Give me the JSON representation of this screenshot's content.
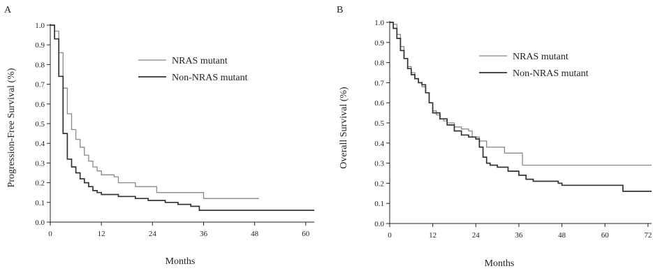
{
  "chart_data": [
    {
      "type": "line",
      "panel_label": "A",
      "xlabel": "Months",
      "ylabel": "Progression-Free Survival (%)",
      "xticks": [
        "0",
        "12",
        "24",
        "36",
        "48",
        "60"
      ],
      "yticks": [
        "0.0",
        "0.1",
        "0.2",
        "0.3",
        "0.4",
        "0.5",
        "0.6",
        "0.7",
        "0.8",
        "0.9",
        "1.0"
      ],
      "xlim": [
        0,
        62
      ],
      "ylim": [
        0,
        1
      ],
      "legend_position": "top-right",
      "series": [
        {
          "name": "NRAS mutant",
          "color": "#888888",
          "points": [
            [
              0,
              1.0
            ],
            [
              1,
              0.97
            ],
            [
              2,
              0.86
            ],
            [
              3,
              0.68
            ],
            [
              4,
              0.55
            ],
            [
              5,
              0.47
            ],
            [
              6,
              0.42
            ],
            [
              7,
              0.38
            ],
            [
              8,
              0.34
            ],
            [
              9,
              0.31
            ],
            [
              10,
              0.28
            ],
            [
              11,
              0.26
            ],
            [
              12,
              0.24
            ],
            [
              15,
              0.23
            ],
            [
              16,
              0.2
            ],
            [
              20,
              0.18
            ],
            [
              25,
              0.15
            ],
            [
              30,
              0.15
            ],
            [
              34,
              0.15
            ],
            [
              36,
              0.12
            ],
            [
              49,
              0.12
            ]
          ]
        },
        {
          "name": "Non-NRAS mutant",
          "color": "#333333",
          "points": [
            [
              0,
              1.0
            ],
            [
              1,
              0.93
            ],
            [
              2,
              0.74
            ],
            [
              3,
              0.45
            ],
            [
              4,
              0.32
            ],
            [
              5,
              0.28
            ],
            [
              6,
              0.25
            ],
            [
              7,
              0.22
            ],
            [
              8,
              0.2
            ],
            [
              9,
              0.18
            ],
            [
              10,
              0.16
            ],
            [
              11,
              0.15
            ],
            [
              12,
              0.14
            ],
            [
              15,
              0.14
            ],
            [
              16,
              0.13
            ],
            [
              20,
              0.12
            ],
            [
              23,
              0.11
            ],
            [
              27,
              0.1
            ],
            [
              30,
              0.09
            ],
            [
              33,
              0.08
            ],
            [
              35,
              0.06
            ],
            [
              62,
              0.06
            ]
          ]
        }
      ]
    },
    {
      "type": "line",
      "panel_label": "B",
      "xlabel": "Months",
      "ylabel": "Overall Survival (%)",
      "xticks": [
        "0",
        "12",
        "24",
        "36",
        "48",
        "60",
        "72"
      ],
      "yticks": [
        "0.0",
        "0.1",
        "0.2",
        "0.3",
        "0.4",
        "0.5",
        "0.6",
        "0.7",
        "0.8",
        "0.9",
        "1.0"
      ],
      "xlim": [
        0,
        73
      ],
      "ylim": [
        0,
        1
      ],
      "legend_position": "top-right",
      "series": [
        {
          "name": "NRAS mutant",
          "color": "#888888",
          "points": [
            [
              0,
              1.0
            ],
            [
              1,
              0.99
            ],
            [
              2,
              0.94
            ],
            [
              3,
              0.88
            ],
            [
              4,
              0.82
            ],
            [
              5,
              0.78
            ],
            [
              6,
              0.75
            ],
            [
              7,
              0.72
            ],
            [
              8,
              0.7
            ],
            [
              9,
              0.68
            ],
            [
              10,
              0.65
            ],
            [
              11,
              0.6
            ],
            [
              12,
              0.56
            ],
            [
              13,
              0.54
            ],
            [
              14,
              0.52
            ],
            [
              15,
              0.51
            ],
            [
              16,
              0.5
            ],
            [
              18,
              0.48
            ],
            [
              20,
              0.47
            ],
            [
              22,
              0.46
            ],
            [
              23,
              0.43
            ],
            [
              25,
              0.41
            ],
            [
              27,
              0.38
            ],
            [
              30,
              0.38
            ],
            [
              32,
              0.35
            ],
            [
              36,
              0.35
            ],
            [
              37,
              0.29
            ],
            [
              73,
              0.29
            ]
          ]
        },
        {
          "name": "Non-NRAS mutant",
          "color": "#333333",
          "points": [
            [
              0,
              1.0
            ],
            [
              1,
              0.97
            ],
            [
              2,
              0.92
            ],
            [
              3,
              0.86
            ],
            [
              4,
              0.82
            ],
            [
              5,
              0.77
            ],
            [
              6,
              0.74
            ],
            [
              7,
              0.72
            ],
            [
              8,
              0.7
            ],
            [
              9,
              0.69
            ],
            [
              10,
              0.65
            ],
            [
              11,
              0.6
            ],
            [
              12,
              0.55
            ],
            [
              14,
              0.52
            ],
            [
              16,
              0.49
            ],
            [
              18,
              0.46
            ],
            [
              20,
              0.44
            ],
            [
              22,
              0.43
            ],
            [
              24,
              0.42
            ],
            [
              25,
              0.38
            ],
            [
              26,
              0.33
            ],
            [
              27,
              0.3
            ],
            [
              28,
              0.29
            ],
            [
              30,
              0.28
            ],
            [
              33,
              0.26
            ],
            [
              36,
              0.24
            ],
            [
              38,
              0.22
            ],
            [
              40,
              0.21
            ],
            [
              44,
              0.21
            ],
            [
              47,
              0.2
            ],
            [
              48,
              0.19
            ],
            [
              54,
              0.19
            ],
            [
              60,
              0.19
            ],
            [
              64,
              0.19
            ],
            [
              65,
              0.16
            ],
            [
              73,
              0.16
            ]
          ]
        }
      ]
    }
  ]
}
